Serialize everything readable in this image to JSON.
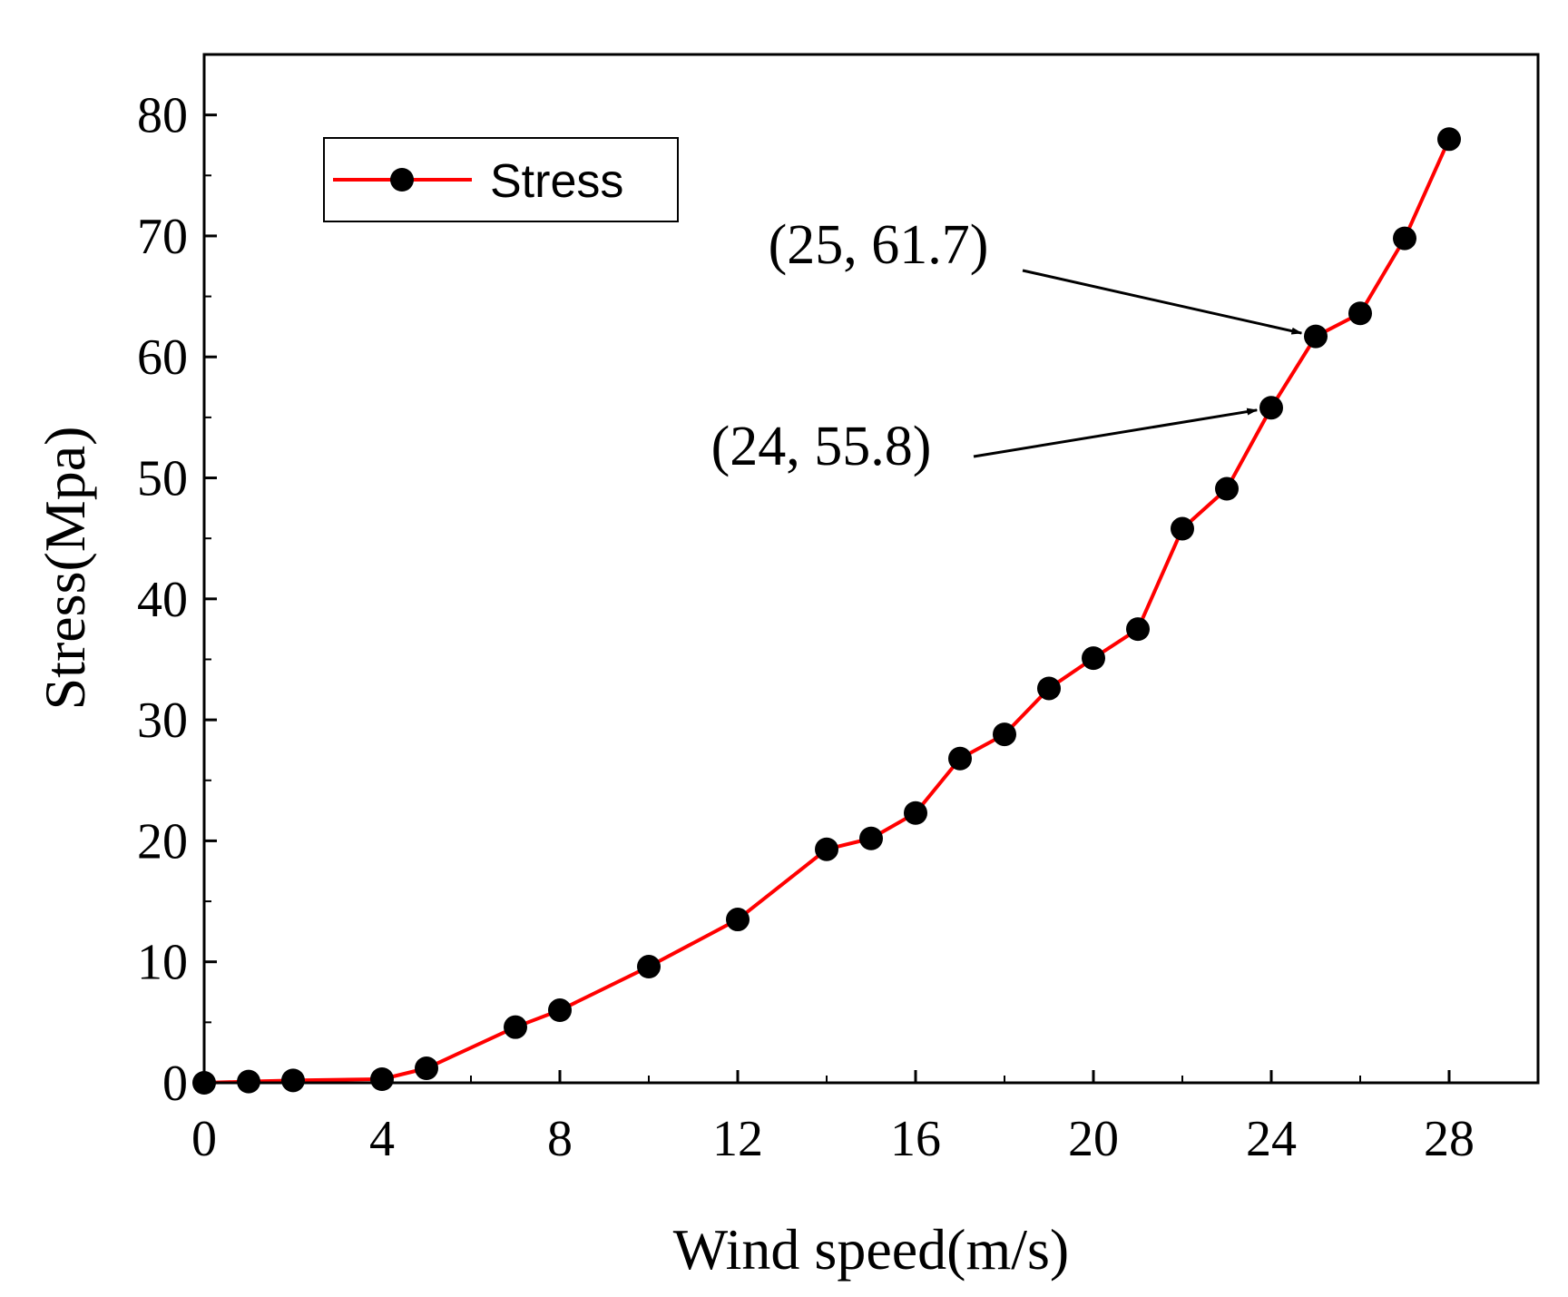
{
  "chart_data": {
    "type": "line",
    "title": "",
    "xlabel": "Wind speed(m/s)",
    "ylabel": "Stress(Mpa)",
    "xlim": [
      0,
      30
    ],
    "ylim": [
      0,
      85
    ],
    "xticks": [
      0,
      4,
      8,
      12,
      16,
      20,
      24,
      28
    ],
    "xtick_labels": [
      "0",
      "4",
      "8",
      "12",
      "16",
      "20",
      "24",
      "28"
    ],
    "yticks": [
      0,
      10,
      20,
      30,
      40,
      50,
      60,
      70,
      80
    ],
    "ytick_labels": [
      "0",
      "10",
      "20",
      "30",
      "40",
      "50",
      "60",
      "70",
      "80"
    ],
    "legend": {
      "position": "top-left",
      "entries": [
        "Stress"
      ]
    },
    "series": [
      {
        "name": "Stress",
        "line_color": "#ff0000",
        "marker_color": "#000000",
        "x": [
          0,
          1,
          2,
          4,
          5,
          7,
          8,
          10,
          12,
          14,
          15,
          16,
          17,
          18,
          19,
          20,
          21,
          22,
          23,
          24,
          25,
          26,
          27,
          28
        ],
        "y": [
          0,
          0.1,
          0.2,
          0.3,
          1.2,
          4.6,
          6.0,
          9.6,
          13.5,
          19.3,
          20.2,
          22.3,
          26.8,
          28.8,
          32.6,
          35.1,
          37.5,
          45.8,
          49.1,
          55.8,
          61.7,
          63.6,
          69.8,
          78.0
        ]
      }
    ],
    "annotations": [
      {
        "text": "(25, 61.7)",
        "x": 25,
        "y": 61.7
      },
      {
        "text": "(24, 55.8)",
        "x": 24,
        "y": 55.8
      }
    ]
  }
}
